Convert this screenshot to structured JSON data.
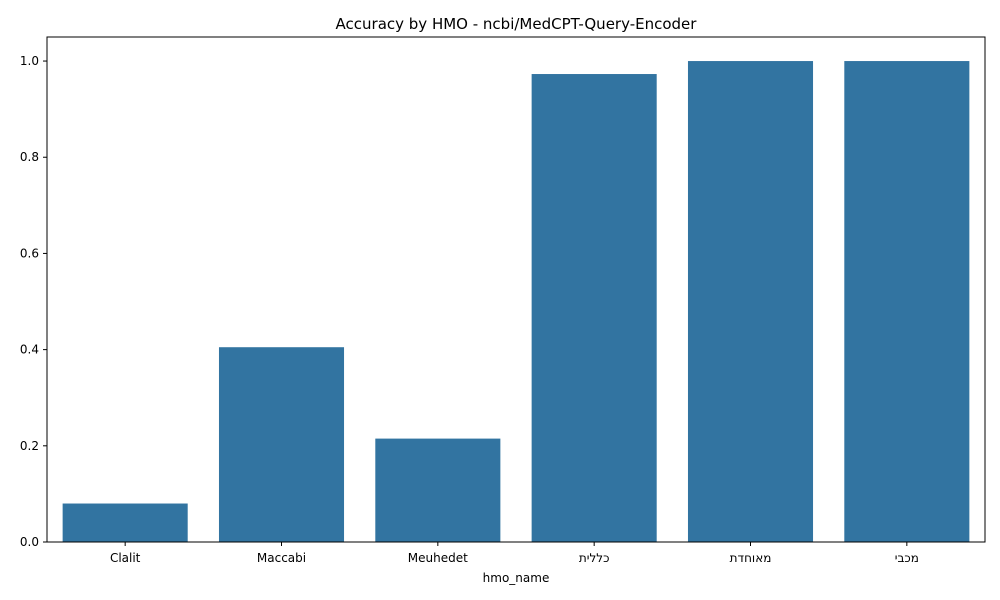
{
  "chart_data": {
    "type": "bar",
    "title": "Accuracy by HMO - ncbi/MedCPT-Query-Encoder",
    "xlabel": "hmo_name",
    "ylabel": "",
    "categories": [
      "Clalit",
      "Maccabi",
      "Meuhedet",
      "כללית",
      "מאוחדת",
      "מכבי"
    ],
    "values": [
      0.08,
      0.405,
      0.215,
      0.973,
      1.0,
      1.0
    ],
    "ylim": [
      0,
      1.05
    ],
    "yticks": [
      0.0,
      0.2,
      0.4,
      0.6,
      0.8,
      1.0
    ],
    "ytick_labels": [
      "0.0",
      "0.2",
      "0.4",
      "0.6",
      "0.8",
      "1.0"
    ],
    "bar_color": "#3274a1",
    "grid": false,
    "legend": "none"
  }
}
